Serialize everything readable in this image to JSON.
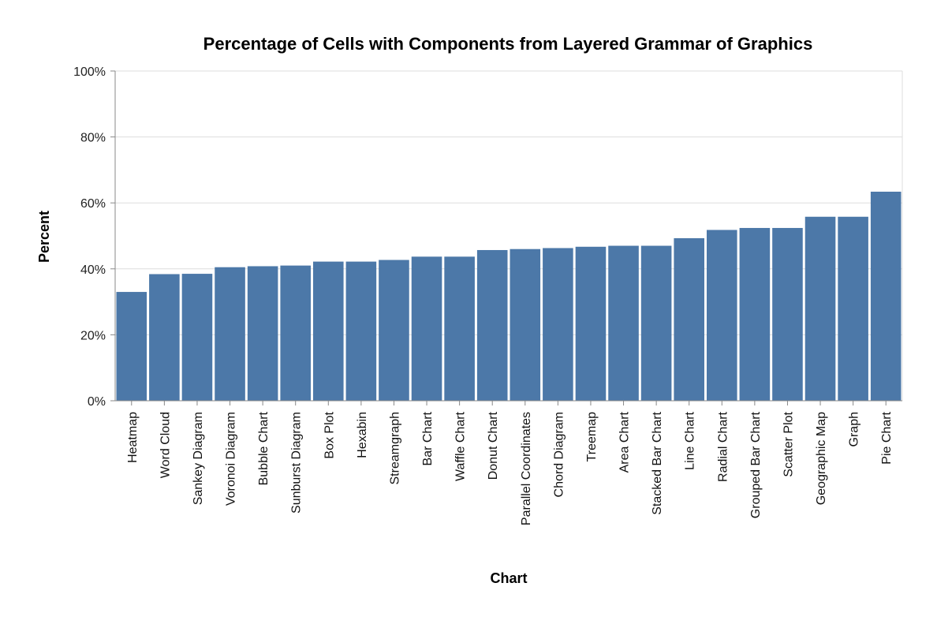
{
  "chart_data": {
    "type": "bar",
    "title": "Percentage of Cells with Components from Layered Grammar of Graphics",
    "xlabel": "Chart",
    "ylabel": "Percent",
    "ylim": [
      0,
      100
    ],
    "y_ticks": [
      "0%",
      "20%",
      "40%",
      "60%",
      "80%",
      "100%"
    ],
    "y_tick_values": [
      0,
      20,
      40,
      60,
      80,
      100
    ],
    "grid": true,
    "bar_color": "#4c78a8",
    "categories": [
      "Heatmap",
      "Word Cloud",
      "Sankey Diagram",
      "Voronoi Diagram",
      "Bubble Chart",
      "Sunburst Diagram",
      "Box Plot",
      "Hexabin",
      "Streamgraph",
      "Bar Chart",
      "Waffle Chart",
      "Donut Chart",
      "Parallel Coordinates",
      "Chord Diagram",
      "Treemap",
      "Area Chart",
      "Stacked Bar Chart",
      "Line Chart",
      "Radial Chart",
      "Grouped Bar Chart",
      "Scatter Plot",
      "Geographic Map",
      "Graph",
      "Pie Chart"
    ],
    "values": [
      33.0,
      38.4,
      38.5,
      40.5,
      40.8,
      41.0,
      42.2,
      42.2,
      42.7,
      43.7,
      43.7,
      45.7,
      46.0,
      46.3,
      46.7,
      47.0,
      47.0,
      49.3,
      51.8,
      52.4,
      52.4,
      55.8,
      55.8,
      63.4
    ]
  }
}
